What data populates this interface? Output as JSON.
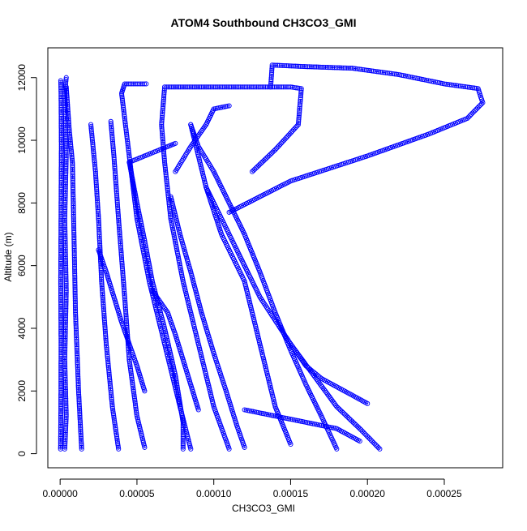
{
  "chart_data": {
    "type": "scatter",
    "title": "ATOM4 Southbound CH3CO3_GMI",
    "xlabel": "CH3CO3_GMI",
    "ylabel": "Altitude (m)",
    "xlim": [
      -8e-06,
      0.000288
    ],
    "ylim": [
      -450,
      12950
    ],
    "xticks": [
      "0.00000",
      "0.00005",
      "0.00010",
      "0.00015",
      "0.00020",
      "0.00025"
    ],
    "xtick_values": [
      0,
      5e-05,
      0.0001,
      0.00015,
      0.0002,
      0.00025
    ],
    "yticks": [
      "0",
      "2000",
      "4000",
      "6000",
      "8000",
      "10000",
      "12000"
    ],
    "ytick_values": [
      0,
      2000,
      4000,
      6000,
      8000,
      10000,
      12000
    ],
    "marker": "open-circle",
    "line_style": "dashed",
    "grid": false,
    "legend": "none",
    "color": "#0000ff",
    "series": [
      {
        "values": [
          [
            3e-07,
            150
          ],
          [
            5e-07,
            1500
          ],
          [
            6e-07,
            3500
          ],
          [
            4e-07,
            5500
          ],
          [
            6e-07,
            7800
          ],
          [
            8e-07,
            9800
          ],
          [
            6e-07,
            11500
          ],
          [
            4e-07,
            11900
          ]
        ]
      },
      {
        "values": [
          [
            3e-06,
            150
          ],
          [
            4e-06,
            1200
          ],
          [
            3e-06,
            3000
          ],
          [
            4e-06,
            5200
          ],
          [
            3e-06,
            7500
          ],
          [
            4e-06,
            9500
          ],
          [
            3e-06,
            11500
          ],
          [
            4e-06,
            12000
          ]
        ]
      },
      {
        "values": [
          [
            1.4e-05,
            150
          ],
          [
            1.2e-05,
            2000
          ],
          [
            1e-05,
            4500
          ],
          [
            9e-06,
            7000
          ],
          [
            8e-06,
            9300
          ],
          [
            6e-06,
            10300
          ],
          [
            4e-06,
            11700
          ]
        ]
      },
      {
        "values": [
          [
            3.8e-05,
            150
          ],
          [
            3.4e-05,
            1500
          ],
          [
            3e-05,
            3500
          ],
          [
            2.7e-05,
            5500
          ],
          [
            2.5e-05,
            7500
          ],
          [
            2.3e-05,
            9000
          ],
          [
            2e-05,
            10500
          ]
        ]
      },
      {
        "values": [
          [
            5.5e-05,
            200
          ],
          [
            5e-05,
            1200
          ],
          [
            4.5e-05,
            3000
          ],
          [
            4.2e-05,
            5000
          ],
          [
            3.8e-05,
            7500
          ],
          [
            3.5e-05,
            9500
          ],
          [
            3.3e-05,
            10600
          ]
        ]
      },
      {
        "values": [
          [
            8.5e-05,
            150
          ],
          [
            7.8e-05,
            1500
          ],
          [
            6.8e-05,
            3500
          ],
          [
            5.8e-05,
            5500
          ],
          [
            5e-05,
            7500
          ],
          [
            4.5e-05,
            9500
          ],
          [
            4e-05,
            11500
          ],
          [
            4.2e-05,
            11800
          ],
          [
            5.6e-05,
            11800
          ]
        ]
      },
      {
        "values": [
          [
            0.00011,
            150
          ],
          [
            0.0001,
            1500
          ],
          [
            9e-05,
            3500
          ],
          [
            8e-05,
            5500
          ],
          [
            7.2e-05,
            7500
          ],
          [
            6.8e-05,
            9300
          ],
          [
            6.6e-05,
            10500
          ],
          [
            6.8e-05,
            11700
          ],
          [
            0.0001,
            11700
          ],
          [
            0.00015,
            11700
          ],
          [
            0.000157,
            11650
          ],
          [
            0.000155,
            10500
          ],
          [
            0.00014,
            9700
          ],
          [
            0.000125,
            9000
          ]
        ]
      },
      {
        "values": [
          [
            0.00015,
            300
          ],
          [
            0.00014,
            1500
          ],
          [
            0.00013,
            3500
          ],
          [
            0.00012,
            5500
          ],
          [
            0.000105,
            7000
          ],
          [
            9.5e-05,
            8500
          ],
          [
            9e-05,
            9500
          ],
          [
            8.5e-05,
            10500
          ]
        ]
      },
      {
        "values": [
          [
            0.000208,
            150
          ],
          [
            0.000195,
            800
          ],
          [
            0.00018,
            1500
          ],
          [
            0.000165,
            2500
          ],
          [
            0.00015,
            3500
          ],
          [
            0.00013,
            5000
          ],
          [
            0.00011,
            7000
          ],
          [
            9.5e-05,
            8500
          ]
        ]
      },
      {
        "values": [
          [
            0.00018,
            150
          ],
          [
            0.00017,
            1200
          ],
          [
            0.00016,
            2200
          ],
          [
            0.00015,
            3300
          ],
          [
            0.00014,
            4500
          ],
          [
            0.00013,
            5800
          ],
          [
            0.00012,
            7000
          ],
          [
            0.00011,
            8000
          ],
          [
            0.0001,
            9000
          ],
          [
            9e-05,
            9800
          ],
          [
            8.5e-05,
            10500
          ]
        ]
      },
      {
        "values": [
          [
            0.0002,
            1600
          ],
          [
            0.000185,
            2000
          ],
          [
            0.00017,
            2400
          ],
          [
            0.00016,
            2800
          ],
          [
            0.00015,
            3500
          ]
        ]
      },
      {
        "values": [
          [
            0.00011,
            7700
          ],
          [
            0.00015,
            8700
          ],
          [
            0.0002,
            9500
          ],
          [
            0.00024,
            10200
          ],
          [
            0.000265,
            10700
          ],
          [
            0.000275,
            11200
          ],
          [
            0.000272,
            11650
          ],
          [
            0.00025,
            11800
          ],
          [
            0.00022,
            12100
          ],
          [
            0.00019,
            12300
          ],
          [
            0.00016,
            12350
          ],
          [
            0.000138,
            12400
          ],
          [
            0.000137,
            11700
          ]
        ]
      },
      {
        "values": [
          [
            7.5e-05,
            9000
          ],
          [
            8.5e-05,
            9800
          ],
          [
            9.5e-05,
            10500
          ],
          [
            0.0001,
            11000
          ],
          [
            0.00011,
            11100
          ]
        ]
      },
      {
        "values": [
          [
            4.5e-05,
            9300
          ],
          [
            6e-05,
            9600
          ],
          [
            7e-05,
            9800
          ],
          [
            7.5e-05,
            9900
          ]
        ]
      },
      {
        "values": [
          [
            8e-05,
            150
          ],
          [
            8e-05,
            1000
          ],
          [
            7.5e-05,
            2500
          ],
          [
            6.8e-05,
            4000
          ],
          [
            6e-05,
            5500
          ],
          [
            5.5e-05,
            6800
          ],
          [
            5e-05,
            8000
          ],
          [
            4.5e-05,
            9300
          ]
        ]
      },
      {
        "values": [
          [
            0.00012,
            200
          ],
          [
            0.000115,
            900
          ],
          [
            0.000108,
            2000
          ],
          [
            0.0001,
            3200
          ],
          [
            9.2e-05,
            4500
          ],
          [
            8.5e-05,
            5800
          ],
          [
            7.8e-05,
            7000
          ],
          [
            7.2e-05,
            8200
          ]
        ]
      },
      {
        "values": [
          [
            0.00012,
            1400
          ],
          [
            0.00014,
            1200
          ],
          [
            0.00016,
            1000
          ],
          [
            0.00018,
            800
          ],
          [
            0.000195,
            400
          ]
        ]
      },
      {
        "values": [
          [
            6e-05,
            5200
          ],
          [
            7e-05,
            4500
          ],
          [
            7.5e-05,
            3800
          ],
          [
            8e-05,
            3000
          ],
          [
            8.5e-05,
            2200
          ],
          [
            9e-05,
            1400
          ]
        ]
      },
      {
        "values": [
          [
            2.5e-05,
            6500
          ],
          [
            3e-05,
            5800
          ],
          [
            3.5e-05,
            5000
          ],
          [
            4e-05,
            4200
          ],
          [
            4.5e-05,
            3500
          ],
          [
            5e-05,
            2800
          ],
          [
            5.5e-05,
            2000
          ]
        ]
      }
    ]
  }
}
